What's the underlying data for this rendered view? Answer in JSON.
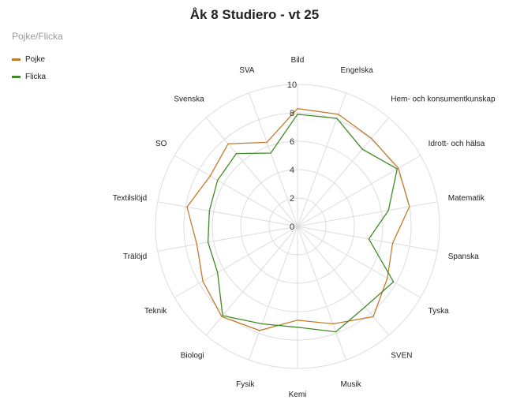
{
  "chart_data": {
    "type": "radar",
    "title": "Åk 8 Studiero - vt 25",
    "legend_title": "Pojke/Flicka",
    "legend_position": "top-left",
    "categories": [
      "Bild",
      "Engelska",
      "Hem- och konsumentkunskap",
      "Idrott- och hälsa",
      "Matematik",
      "Spanska",
      "Tyska",
      "SVEN",
      "Musik",
      "Kemi",
      "Fysik",
      "Biologi",
      "Teknik",
      "Trälöjd",
      "Textilslöjd",
      "SO",
      "Svenska",
      "SVA"
    ],
    "rlim": [
      0,
      10
    ],
    "ticks": [
      "0",
      "2",
      "4",
      "6",
      "8",
      "10"
    ],
    "grid": true,
    "series": [
      {
        "name": "Pojke",
        "color": "#c47a2c",
        "values": [
          8.3,
          8.4,
          8.1,
          8.2,
          8.0,
          6.8,
          7.3,
          8.3,
          7.3,
          6.6,
          7.8,
          8.3,
          7.7,
          7.2,
          7.9,
          7.1,
          7.6,
          6.3
        ]
      },
      {
        "name": "Flicka",
        "color": "#3f8a26",
        "values": [
          7.9,
          8.1,
          7.1,
          8.1,
          6.5,
          5.1,
          7.8,
          7.4,
          7.9,
          7.1,
          7.3,
          8.2,
          6.5,
          6.4,
          6.3,
          6.5,
          6.7,
          5.5
        ]
      }
    ]
  }
}
